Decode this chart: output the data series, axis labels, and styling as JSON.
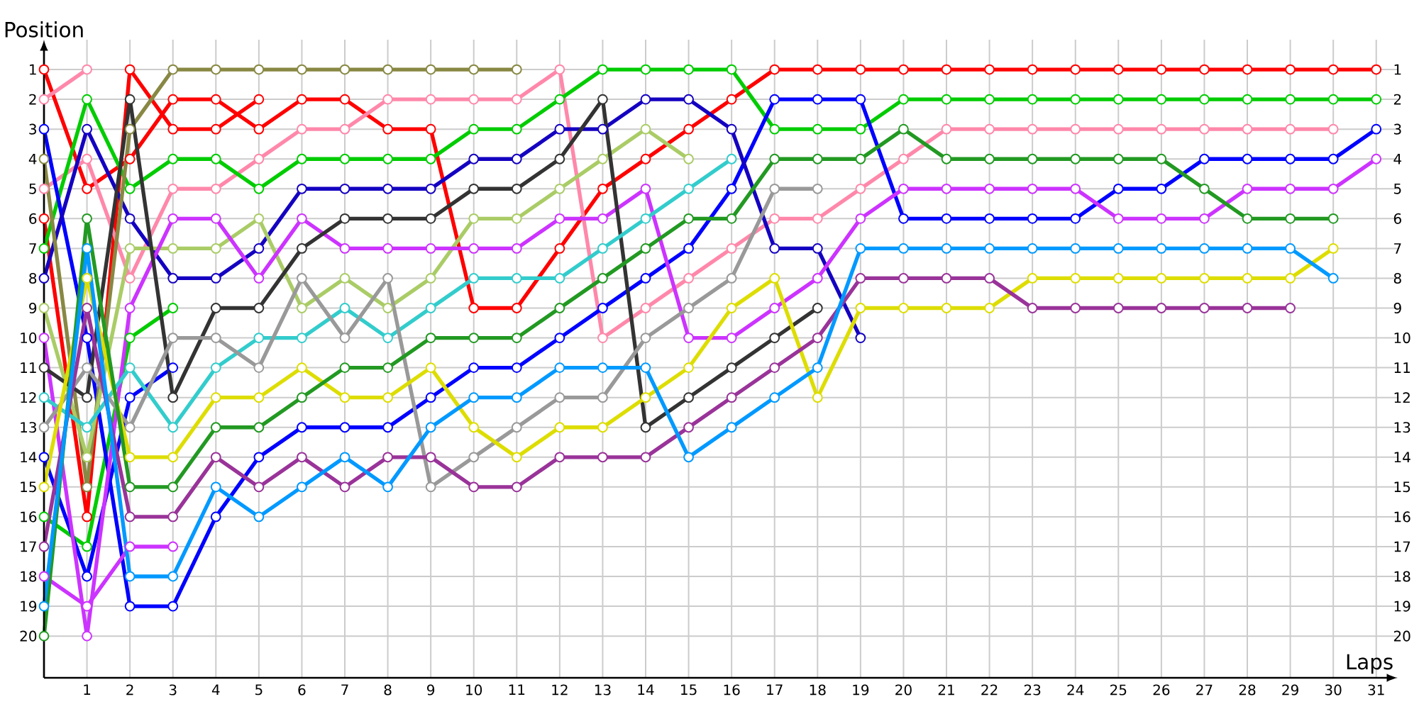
{
  "chart_data": {
    "type": "line",
    "xlabel": "Laps",
    "ylabel": "Position",
    "x": [
      0,
      1,
      2,
      3,
      4,
      5,
      6,
      7,
      8,
      9,
      10,
      11,
      12,
      13,
      14,
      15,
      16,
      17,
      18,
      19,
      20,
      21,
      22,
      23,
      24,
      25,
      26,
      27,
      28,
      29,
      30,
      31
    ],
    "xlim": [
      0,
      31.5
    ],
    "xticks": [
      1,
      2,
      3,
      4,
      5,
      6,
      7,
      8,
      9,
      10,
      11,
      12,
      13,
      14,
      15,
      16,
      17,
      18,
      19,
      20,
      21,
      22,
      23,
      24,
      25,
      26,
      27,
      28,
      29,
      30,
      31
    ],
    "ylim": [
      21.4,
      0
    ],
    "yticks": [
      1,
      2,
      3,
      4,
      5,
      6,
      7,
      8,
      9,
      10,
      11,
      12,
      13,
      14,
      15,
      16,
      17,
      18,
      19,
      20
    ],
    "y2lim": [
      21.4,
      0
    ],
    "y2ticks": [
      1,
      2,
      3,
      4,
      5,
      6,
      7,
      8,
      9,
      10,
      11,
      12,
      13,
      14,
      15,
      16,
      17,
      18,
      19,
      20
    ],
    "grid": true,
    "marker": "circle",
    "line_style": "solid",
    "series": [
      {
        "color": "#ff0000",
        "values": [
          1,
          5,
          4,
          2,
          2,
          3,
          2,
          2,
          3,
          3,
          9,
          9,
          7,
          5,
          4,
          3,
          2,
          1,
          1,
          1,
          1,
          1,
          1,
          1,
          1,
          1,
          1,
          1,
          1,
          1,
          1,
          1
        ]
      },
      {
        "color": "#ff0000",
        "values": [
          6,
          16,
          1,
          3,
          3,
          2,
          null,
          null,
          null,
          null,
          null,
          null,
          null,
          null,
          null,
          null,
          null,
          null,
          null,
          null,
          null,
          null,
          null,
          null,
          null,
          null,
          null,
          null,
          null,
          null,
          null,
          null
        ]
      },
      {
        "color": "#ff88aa",
        "values": [
          2,
          1,
          null,
          null,
          null,
          null,
          null,
          null,
          null,
          null,
          null,
          null,
          null,
          null,
          null,
          null,
          null,
          null,
          null,
          null,
          null,
          null,
          null,
          null,
          null,
          null,
          null,
          null,
          null,
          null,
          null,
          null
        ]
      },
      {
        "color": "#ff88aa",
        "values": [
          5,
          4,
          8,
          5,
          5,
          4,
          3,
          3,
          2,
          2,
          2,
          2,
          1,
          10,
          9,
          8,
          7,
          6,
          6,
          5,
          4,
          3,
          3,
          3,
          3,
          3,
          3,
          3,
          3,
          3,
          3,
          null
        ]
      },
      {
        "color": "#00cc00",
        "values": [
          7,
          2,
          5,
          4,
          4,
          5,
          4,
          4,
          4,
          4,
          3,
          3,
          2,
          1,
          1,
          1,
          1,
          3,
          3,
          3,
          2,
          2,
          2,
          2,
          2,
          2,
          2,
          2,
          2,
          2,
          2,
          2
        ]
      },
      {
        "color": "#00cc00",
        "values": [
          16,
          17,
          10,
          9,
          null,
          null,
          null,
          null,
          null,
          null,
          null,
          null,
          null,
          null,
          null,
          null,
          null,
          null,
          null,
          null,
          null,
          null,
          null,
          null,
          null,
          null,
          null,
          null,
          null,
          null,
          null,
          null
        ]
      },
      {
        "color": "#0000ff",
        "values": [
          3,
          10,
          19,
          19,
          16,
          14,
          13,
          13,
          13,
          12,
          11,
          11,
          10,
          9,
          8,
          7,
          5,
          2,
          2,
          2,
          6,
          6,
          6,
          6,
          6,
          5,
          5,
          4,
          4,
          4,
          4,
          3
        ]
      },
      {
        "color": "#0000ff",
        "values": [
          14,
          18,
          12,
          11,
          null,
          null,
          null,
          null,
          null,
          null,
          null,
          null,
          null,
          null,
          null,
          null,
          null,
          null,
          null,
          null,
          null,
          null,
          null,
          null,
          null,
          null,
          null,
          null,
          null,
          null,
          null,
          null
        ]
      },
      {
        "color": "#1400c0",
        "values": [
          8,
          3,
          6,
          8,
          8,
          7,
          5,
          5,
          5,
          5,
          4,
          4,
          3,
          3,
          2,
          2,
          3,
          7,
          7,
          10,
          null,
          null,
          null,
          null,
          null,
          null,
          null,
          null,
          null,
          null,
          null,
          null
        ]
      },
      {
        "color": "#888844",
        "values": [
          4,
          15,
          3,
          1,
          1,
          1,
          1,
          1,
          1,
          1,
          1,
          1,
          null,
          null,
          null,
          null,
          null,
          null,
          null,
          null,
          null,
          null,
          null,
          null,
          null,
          null,
          null,
          null,
          null,
          null,
          null,
          null
        ]
      },
      {
        "color": "#aacc66",
        "values": [
          9,
          14,
          7,
          7,
          7,
          6,
          9,
          8,
          9,
          8,
          6,
          6,
          5,
          4,
          3,
          4,
          null,
          null,
          null,
          null,
          null,
          null,
          null,
          null,
          null,
          null,
          null,
          null,
          null,
          null,
          null,
          null
        ]
      },
      {
        "color": "#cc33ff",
        "values": [
          10,
          20,
          9,
          6,
          6,
          8,
          6,
          7,
          7,
          7,
          7,
          7,
          6,
          6,
          5,
          10,
          10,
          9,
          8,
          6,
          5,
          5,
          5,
          5,
          5,
          6,
          6,
          6,
          5,
          5,
          5,
          4
        ]
      },
      {
        "color": "#cc33ff",
        "values": [
          18,
          19,
          17,
          17,
          null,
          null,
          null,
          null,
          null,
          null,
          null,
          null,
          null,
          null,
          null,
          null,
          null,
          null,
          null,
          null,
          null,
          null,
          null,
          null,
          null,
          null,
          null,
          null,
          null,
          null,
          null,
          null
        ]
      },
      {
        "color": "#333333",
        "values": [
          11,
          12,
          2,
          12,
          9,
          9,
          7,
          6,
          6,
          6,
          5,
          5,
          4,
          2,
          13,
          12,
          11,
          10,
          9,
          null,
          null,
          null,
          null,
          null,
          null,
          null,
          null,
          null,
          null,
          null,
          null,
          null
        ]
      },
      {
        "color": "#33cccc",
        "values": [
          12,
          13,
          11,
          13,
          11,
          10,
          10,
          9,
          10,
          9,
          8,
          8,
          8,
          7,
          6,
          5,
          4,
          null,
          null,
          null,
          null,
          null,
          null,
          null,
          null,
          null,
          null,
          null,
          null,
          null,
          null,
          null
        ]
      },
      {
        "color": "#999999",
        "values": [
          13,
          11,
          13,
          10,
          10,
          11,
          8,
          10,
          8,
          15,
          14,
          13,
          12,
          12,
          10,
          9,
          8,
          5,
          5,
          null,
          null,
          null,
          null,
          null,
          null,
          null,
          null,
          null,
          null,
          null,
          null,
          null
        ]
      },
      {
        "color": "#dddd00",
        "values": [
          15,
          8,
          14,
          14,
          12,
          12,
          11,
          12,
          12,
          11,
          13,
          14,
          13,
          13,
          12,
          11,
          9,
          8,
          12,
          9,
          9,
          9,
          9,
          8,
          8,
          8,
          8,
          8,
          8,
          8,
          7,
          null
        ]
      },
      {
        "color": "#229922",
        "values": [
          20,
          6,
          15,
          15,
          13,
          13,
          12,
          11,
          11,
          10,
          10,
          10,
          9,
          8,
          7,
          6,
          6,
          4,
          4,
          4,
          3,
          4,
          4,
          4,
          4,
          4,
          4,
          5,
          6,
          6,
          6,
          null
        ]
      },
      {
        "color": "#993399",
        "values": [
          17,
          9,
          16,
          16,
          14,
          15,
          14,
          15,
          14,
          14,
          15,
          15,
          14,
          14,
          14,
          13,
          12,
          11,
          10,
          8,
          8,
          8,
          8,
          9,
          9,
          9,
          9,
          9,
          9,
          9,
          null,
          null
        ]
      },
      {
        "color": "#0099ff",
        "values": [
          19,
          7,
          18,
          18,
          15,
          16,
          15,
          14,
          15,
          13,
          12,
          12,
          11,
          11,
          11,
          14,
          13,
          12,
          11,
          7,
          7,
          7,
          7,
          7,
          7,
          7,
          7,
          7,
          7,
          7,
          8,
          null
        ]
      }
    ]
  }
}
